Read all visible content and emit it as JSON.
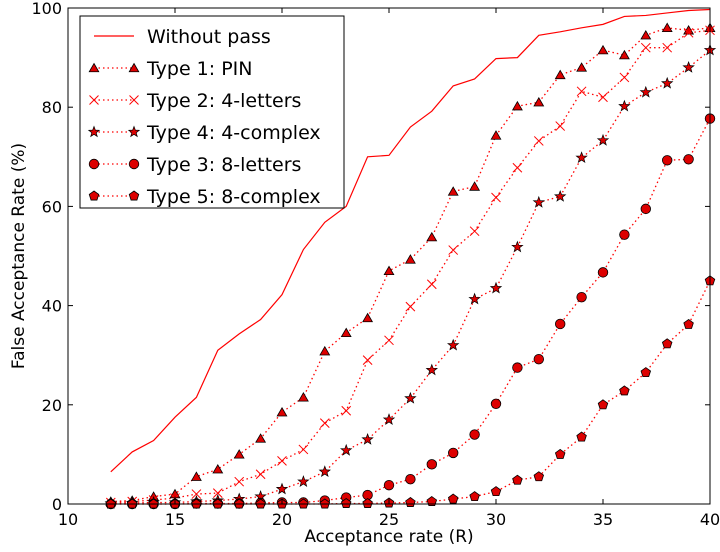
{
  "chart_data": {
    "type": "line",
    "title": "",
    "xlabel": "Acceptance rate (R)",
    "ylabel": "False Acceptance Rate  (%)",
    "xlim": [
      10,
      40
    ],
    "ylim": [
      0,
      100
    ],
    "xticks": [
      10,
      15,
      20,
      25,
      30,
      35,
      40
    ],
    "yticks": [
      0,
      20,
      40,
      60,
      80,
      100
    ],
    "grid": false,
    "legend_position": "top-left",
    "color": "#ff0000",
    "marker_fill": "#dd0000",
    "x": [
      12,
      13,
      14,
      15,
      16,
      17,
      18,
      19,
      20,
      21,
      22,
      23,
      24,
      25,
      26,
      27,
      28,
      29,
      30,
      31,
      32,
      33,
      34,
      35,
      36,
      37,
      38,
      39,
      40
    ],
    "series": [
      {
        "name": "Without pass",
        "style": "solid",
        "marker": "none",
        "values": [
          6.5,
          10.5,
          12.8,
          17.5,
          21.5,
          31.0,
          34.3,
          37.2,
          42.2,
          51.3,
          56.8,
          60.0,
          70.0,
          70.3,
          76.0,
          79.2,
          84.3,
          85.7,
          89.8,
          90.0,
          94.5,
          95.2,
          96.0,
          96.7,
          98.3,
          98.5,
          99.0,
          99.5,
          99.7
        ]
      },
      {
        "name": "Type 1: PIN",
        "style": "dotted",
        "marker": "triangle",
        "values": [
          0.5,
          0.7,
          1.5,
          2.0,
          5.5,
          7.0,
          10.0,
          13.2,
          18.5,
          21.5,
          30.8,
          34.5,
          37.5,
          47.0,
          49.3,
          53.8,
          63.0,
          64.0,
          74.3,
          80.2,
          81.0,
          86.5,
          88.0,
          91.5,
          90.5,
          94.5,
          96.0,
          95.5,
          96.0
        ]
      },
      {
        "name": "Type 2: 4-letters",
        "style": "dotted",
        "marker": "x",
        "values": [
          0.3,
          0.5,
          0.8,
          1.2,
          2.0,
          2.2,
          4.5,
          6.0,
          8.7,
          11.0,
          16.3,
          18.8,
          29.0,
          33.0,
          39.8,
          44.3,
          51.2,
          55.0,
          61.8,
          67.8,
          73.2,
          76.2,
          83.2,
          82.0,
          86.0,
          92.0,
          92.0,
          95.0,
          95.5
        ]
      },
      {
        "name": "Type 4: 4-complex",
        "style": "dotted",
        "marker": "star",
        "values": [
          0.1,
          0.2,
          0.3,
          0.3,
          0.5,
          0.7,
          1.0,
          1.5,
          3.0,
          4.5,
          6.5,
          10.8,
          13.0,
          17.0,
          21.3,
          27.0,
          32.0,
          41.3,
          43.5,
          51.8,
          60.8,
          62.0,
          69.8,
          73.3,
          80.2,
          83.0,
          84.8,
          88.0,
          91.5
        ]
      },
      {
        "name": "Type 3: 8-letters",
        "style": "dotted",
        "marker": "circle",
        "values": [
          0.0,
          0.0,
          0.0,
          0.0,
          0.1,
          0.1,
          0.1,
          0.2,
          0.3,
          0.3,
          0.7,
          1.3,
          1.8,
          3.8,
          5.0,
          8.0,
          10.3,
          14.0,
          20.2,
          27.5,
          29.2,
          36.3,
          41.7,
          46.7,
          54.3,
          59.5,
          69.3,
          69.5,
          77.7
        ]
      },
      {
        "name": "Type 5: 8-complex",
        "style": "dotted",
        "marker": "pentagon",
        "values": [
          0.0,
          0.0,
          0.0,
          0.0,
          0.0,
          0.0,
          0.0,
          0.0,
          0.0,
          0.0,
          0.0,
          0.1,
          0.1,
          0.2,
          0.3,
          0.5,
          1.0,
          1.5,
          2.5,
          4.8,
          5.5,
          10.0,
          13.5,
          20.0,
          22.8,
          26.5,
          32.3,
          36.2,
          45.0
        ]
      }
    ]
  }
}
